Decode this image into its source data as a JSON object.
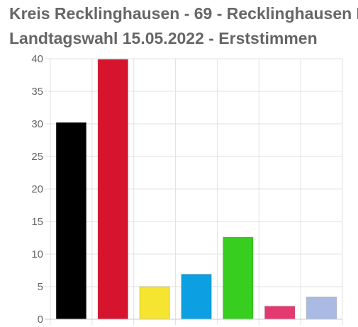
{
  "title": {
    "line1": "Kreis Recklinghausen - 69 - Recklinghausen I",
    "line2": "Landtagswahl 15.05.2022  - Erststimmen"
  },
  "chart_data": {
    "type": "bar",
    "title": "Kreis Recklinghausen - 69 - Recklinghausen I Landtagswahl 15.05.2022  - Erststimmen",
    "xlabel": "",
    "ylabel": "",
    "ylim": [
      0,
      40
    ],
    "yticks": [
      0,
      5,
      10,
      15,
      20,
      25,
      30,
      35,
      40
    ],
    "grid": true,
    "legend": "none",
    "values": [
      30.2,
      39.9,
      5.0,
      6.9,
      12.6,
      2.0,
      3.4
    ],
    "colors": [
      "#000000",
      "#d7142d",
      "#f5e531",
      "#0c9fe1",
      "#38ce20",
      "#e43970",
      "#a9bbe3"
    ]
  }
}
